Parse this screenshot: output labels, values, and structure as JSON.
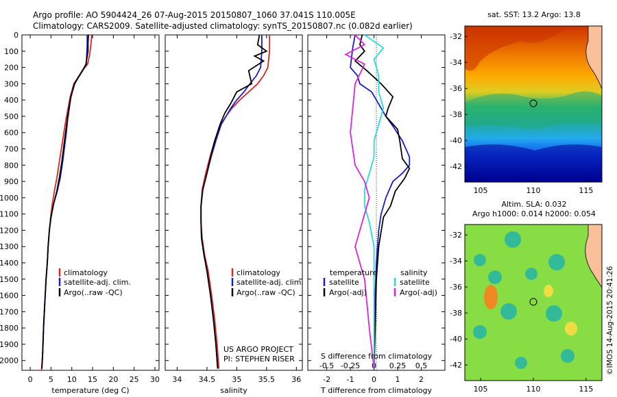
{
  "header": {
    "line1": "Argo profile: AO 5904424_26 07-Aug-2015 20150807_1060 37.041S 110.005E",
    "line2": "Climatology: CARS2009. Satellite-adjusted climatology: synTS_20150807.nc (0.082d earlier)"
  },
  "colors": {
    "climatology": "#dd2222",
    "satellite": "#1a1acc",
    "argo": "#000000",
    "satellite_s": "#22dddd",
    "argo_s": "#dd22dd"
  },
  "chart_data": [
    {
      "type": "line",
      "xlabel": "temperature (deg C)",
      "xlim": [
        -2,
        31
      ],
      "ylim": [
        0,
        2060
      ],
      "xticks": [
        "0",
        "5",
        "10",
        "15",
        "20",
        "25",
        "30"
      ],
      "yticks": [
        "0",
        "100",
        "200",
        "300",
        "400",
        "500",
        "600",
        "700",
        "800",
        "900",
        "1000",
        "1100",
        "1200",
        "1300",
        "1400",
        "1500",
        "1600",
        "1700",
        "1800",
        "1900",
        "2000"
      ],
      "legend": [
        "climatology",
        "satellite-adj. clim.",
        "Argo(..raw -QC)"
      ],
      "series": [
        {
          "name": "climatology",
          "x": [
            14.8,
            14.6,
            14.3,
            13.8,
            12.5,
            10.5,
            9.6,
            9.1,
            8.6,
            8.1,
            7.6,
            7.0,
            6.4,
            5.8,
            5.3,
            4.9,
            4.6,
            4.3,
            4.1,
            3.8,
            3.5,
            3.2,
            3.0,
            2.7
          ],
          "y": [
            0,
            60,
            120,
            180,
            220,
            300,
            380,
            450,
            520,
            600,
            680,
            780,
            880,
            960,
            1040,
            1120,
            1200,
            1300,
            1400,
            1500,
            1650,
            1800,
            1950,
            2060
          ]
        },
        {
          "name": "satellite-adj. clim.",
          "x": [
            13.7,
            13.7,
            13.6,
            13.5,
            12.5,
            10.7,
            9.8,
            9.4,
            9.0,
            8.7,
            8.3,
            7.8,
            7.2,
            6.5,
            5.6,
            5.0,
            4.6,
            4.3,
            4.1,
            3.8,
            3.5,
            3.2,
            3.0,
            2.8
          ],
          "y": [
            0,
            60,
            120,
            180,
            220,
            300,
            380,
            450,
            520,
            600,
            680,
            780,
            880,
            960,
            1040,
            1120,
            1200,
            1300,
            1400,
            1500,
            1650,
            1800,
            1950,
            2050
          ]
        },
        {
          "name": "Argo(..raw -QC)",
          "x": [
            14.0,
            13.9,
            13.9,
            13.6,
            13.4,
            12.6,
            10.6,
            9.8,
            9.3,
            8.9,
            8.5,
            8.1,
            7.6,
            7.0,
            6.4,
            5.6,
            5.0,
            4.6,
            4.3,
            4.1,
            3.8,
            3.5,
            3.2,
            3.0,
            2.8
          ],
          "y": [
            0,
            50,
            100,
            150,
            180,
            220,
            300,
            380,
            450,
            520,
            600,
            680,
            780,
            880,
            960,
            1040,
            1120,
            1200,
            1300,
            1400,
            1500,
            1650,
            1800,
            1950,
            2050
          ]
        }
      ]
    },
    {
      "type": "line",
      "xlabel": "salinity",
      "xlim": [
        33.8,
        36.1
      ],
      "ylim": [
        0,
        2060
      ],
      "xticks": [
        "34",
        "34.5",
        "35",
        "35.5",
        "36"
      ],
      "legend": [
        "climatology",
        "satellite-adj. clim.",
        "Argo(..raw -QC)"
      ],
      "annotation": [
        "US ARGO PROJECT",
        "PI: STEPHEN RISER"
      ],
      "series": [
        {
          "name": "climatology",
          "x": [
            35.55,
            35.55,
            35.52,
            35.45,
            35.35,
            35.2,
            35.05,
            34.92,
            34.82,
            34.73,
            34.63,
            34.55,
            34.48,
            34.42,
            34.4,
            34.4,
            34.42,
            34.46,
            34.52,
            34.58,
            34.63,
            34.67,
            34.7
          ],
          "y": [
            0,
            100,
            200,
            250,
            300,
            350,
            400,
            450,
            500,
            550,
            650,
            750,
            850,
            950,
            1050,
            1150,
            1250,
            1350,
            1450,
            1600,
            1750,
            1900,
            2050
          ]
        },
        {
          "name": "satellite-adj. clim.",
          "x": [
            35.42,
            35.42,
            35.4,
            35.33,
            35.22,
            35.12,
            35.0,
            34.9,
            34.82,
            34.74,
            34.65,
            34.57,
            34.5,
            34.43,
            34.4,
            34.4,
            34.41,
            34.45,
            34.5,
            34.56,
            34.61,
            34.65,
            34.68
          ],
          "y": [
            0,
            100,
            200,
            250,
            300,
            350,
            400,
            450,
            500,
            550,
            650,
            750,
            850,
            950,
            1050,
            1150,
            1250,
            1350,
            1450,
            1600,
            1750,
            1900,
            2050
          ]
        },
        {
          "name": "Argo(..raw -QC)",
          "x": [
            35.38,
            35.35,
            35.5,
            35.3,
            35.45,
            35.2,
            35.25,
            35.0,
            34.9,
            34.8,
            34.72,
            34.63,
            34.56,
            34.5,
            34.43,
            34.4,
            34.4,
            34.41,
            34.45,
            34.5,
            34.56,
            34.61,
            34.65,
            34.68
          ],
          "y": [
            0,
            60,
            100,
            130,
            160,
            220,
            300,
            350,
            420,
            480,
            550,
            650,
            750,
            850,
            950,
            1050,
            1150,
            1250,
            1350,
            1450,
            1600,
            1750,
            1900,
            2050
          ]
        }
      ]
    },
    {
      "type": "line",
      "xlabel": "T difference from climatology",
      "xlabel2": "S difference from climatology",
      "xlim": [
        -2.8,
        3.0
      ],
      "ylim": [
        0,
        2060
      ],
      "xticks": [
        "-2",
        "-1",
        "0",
        "1",
        "2"
      ],
      "xticks_top": [
        "-0.5",
        "-0.25",
        "0",
        "0.25",
        "0.5"
      ],
      "legend_t_title": "temperature",
      "legend_s_title": "salinity",
      "legend": [
        "satellite",
        "Argo(-adj)",
        "satellite",
        "Argo(-adj)"
      ],
      "series": [
        {
          "name": "temperature satellite",
          "x": [
            -0.8,
            -0.9,
            -1.0,
            -0.7,
            -0.6,
            -0.1,
            0.1,
            0.3,
            0.5,
            0.8,
            1.2,
            1.5,
            1.5,
            1.2,
            0.8,
            0.5,
            0.3,
            0.2,
            0.1,
            0.05,
            0.02,
            0.0
          ],
          "y": [
            0,
            80,
            200,
            250,
            300,
            350,
            400,
            450,
            500,
            560,
            650,
            750,
            800,
            850,
            900,
            1000,
            1100,
            1200,
            1400,
            1600,
            1800,
            2050
          ]
        },
        {
          "name": "temperature Argo(-adj)",
          "x": [
            -0.5,
            -0.6,
            -0.4,
            -0.8,
            -0.3,
            0.3,
            0.8,
            0.6,
            0.5,
            1.0,
            1.1,
            1.2,
            1.5,
            1.3,
            0.9,
            0.7,
            0.4,
            0.2,
            0.1,
            0.05,
            0.0
          ],
          "y": [
            0,
            60,
            100,
            160,
            220,
            300,
            380,
            450,
            500,
            580,
            660,
            760,
            820,
            880,
            960,
            1050,
            1120,
            1300,
            1500,
            1800,
            2050
          ]
        },
        {
          "name": "salinity satellite",
          "x": [
            -0.1,
            0.1,
            0.0,
            0.05,
            0.05,
            0.1,
            0.05,
            0.0,
            0.0,
            -0.05,
            -0.1,
            -0.1,
            -0.05,
            0.0,
            0.0,
            0.0
          ],
          "y": [
            0,
            80,
            150,
            250,
            350,
            450,
            550,
            650,
            750,
            850,
            950,
            1050,
            1150,
            1300,
            1600,
            2050
          ]
        },
        {
          "name": "salinity Argo(-adj)",
          "x": [
            -0.2,
            -0.1,
            -0.3,
            -0.1,
            -0.15,
            -0.2,
            -0.25,
            -0.2,
            -0.1,
            -0.05,
            -0.1,
            -0.2,
            -0.1,
            -0.05,
            0.0
          ],
          "y": [
            0,
            60,
            120,
            180,
            240,
            300,
            600,
            800,
            900,
            1000,
            1100,
            1300,
            1500,
            1800,
            2050
          ]
        }
      ]
    },
    {
      "type": "heatmap",
      "title": "sat. SST: 13.2  Argo: 13.8",
      "xticks": [
        "105",
        "110",
        "115"
      ],
      "yticks": [
        "-32",
        "-34",
        "-36",
        "-38",
        "-40",
        "-42"
      ],
      "marker": {
        "lon": 110.0,
        "lat": -37.04
      }
    },
    {
      "type": "heatmap",
      "title": "Altim. SLA: 0.032",
      "subtitle": "Argo h1000: 0.014  h2000: 0.054",
      "xticks": [
        "105",
        "110",
        "115"
      ],
      "yticks": [
        "-32",
        "-34",
        "-36",
        "-38",
        "-40",
        "-42"
      ],
      "marker": {
        "lon": 110.0,
        "lat": -37.04
      }
    }
  ],
  "side_label": "©IMOS 14-Aug-2015 20:41:26"
}
